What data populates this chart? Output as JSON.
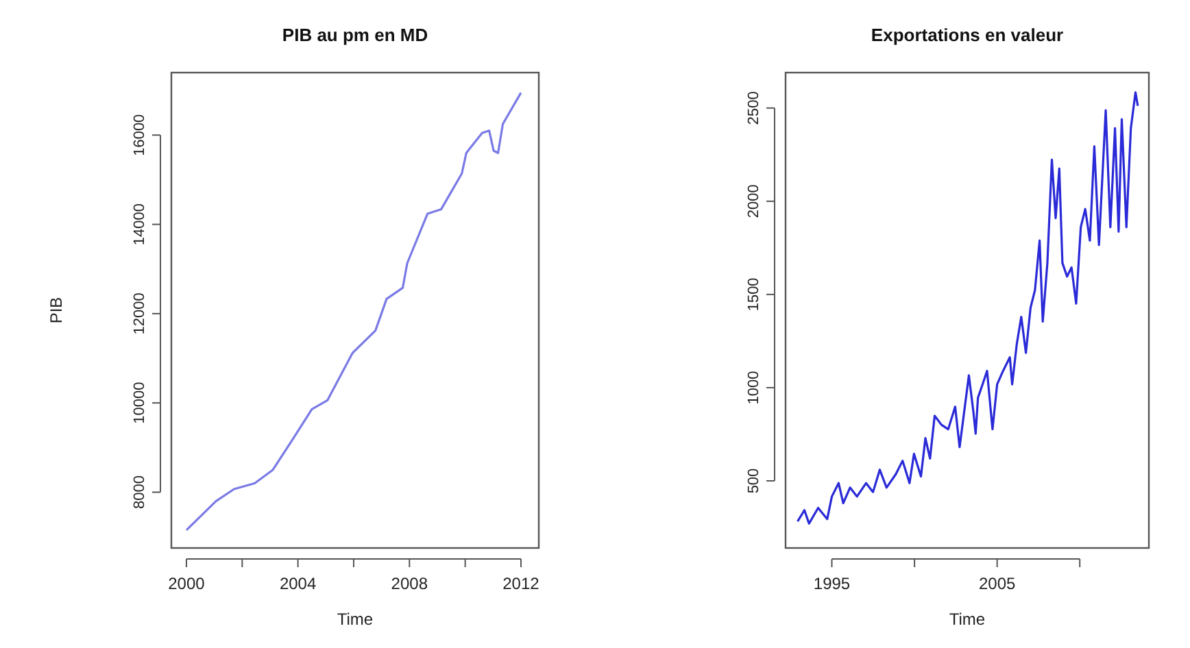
{
  "chart_data": [
    {
      "type": "line",
      "title": "PIB au pm en MD",
      "xlabel": "Time",
      "ylabel": "PIB",
      "xlim": [
        1999.46,
        2012.64
      ],
      "ylim": [
        6750,
        17400
      ],
      "xticks": [
        2000,
        {
          "value": 2002,
          "label": null
        },
        2004,
        {
          "value": 2006,
          "label": null
        },
        2008,
        {
          "value": 2010,
          "label": null
        },
        2012
      ],
      "yticks": [
        8000,
        10000,
        12000,
        14000,
        16000
      ],
      "x": [
        2000,
        2001.06,
        2001.71,
        2002.45,
        2003.1,
        2003.84,
        2004.5,
        2005.06,
        2005.96,
        2006.78,
        2007.18,
        2007.76,
        2007.92,
        2008.65,
        2009.14,
        2009.88,
        2010.04,
        2010.61,
        2010.86,
        2011.02,
        2011.18,
        2011.35,
        2012
      ],
      "series": [
        {
          "color": "#7a7ae6",
          "values": [
            7150,
            7800,
            8070,
            8200,
            8500,
            9210,
            9860,
            10060,
            11120,
            11620,
            12330,
            12580,
            13130,
            14240,
            14340,
            15140,
            15600,
            16050,
            16100,
            15650,
            15600,
            16250,
            16950
          ]
        }
      ]
    },
    {
      "type": "line",
      "title": "Exportations en valeur",
      "xlabel": "Time",
      "xlim": [
        1992.2,
        2014.18
      ],
      "ylim": [
        140,
        2690
      ],
      "xticks": [
        1995,
        {
          "value": 2000,
          "label": null
        },
        2005,
        {
          "value": 2010,
          "label": null
        }
      ],
      "yticks": [
        500,
        1000,
        1500,
        2000,
        2500
      ],
      "x": [
        1992.93,
        1993.34,
        1993.62,
        1994.17,
        1994.72,
        1995,
        1995.41,
        1995.69,
        1996.1,
        1996.52,
        1997.07,
        1997.49,
        1997.9,
        1998.31,
        1998.87,
        1999.28,
        1999.7,
        1999.97,
        2000.39,
        2000.66,
        2000.94,
        2001.22,
        2001.63,
        2002.04,
        2002.46,
        2002.73,
        2003.01,
        2003.29,
        2003.56,
        2003.7,
        2003.84,
        2004.12,
        2004.39,
        2004.72,
        2005,
        2005.36,
        2005.77,
        2005.91,
        2006.19,
        2006.46,
        2006.74,
        2007.02,
        2007.29,
        2007.57,
        2007.76,
        2008.04,
        2008.31,
        2008.54,
        2008.76,
        2008.95,
        2009.23,
        2009.5,
        2009.78,
        2010.06,
        2010.33,
        2010.61,
        2010.88,
        2011.16,
        2011.57,
        2011.85,
        2012.13,
        2012.35,
        2012.54,
        2012.82,
        2013.09,
        2013.37,
        2013.51
      ],
      "series": [
        {
          "color": "#2a2ad8",
          "values": [
            283,
            343,
            271,
            355,
            295,
            416,
            488,
            380,
            464,
            416,
            488,
            440,
            560,
            464,
            536,
            608,
            488,
            645,
            524,
            729,
            620,
            849,
            801,
            777,
            898,
            681,
            873,
            1066,
            873,
            753,
            946,
            1018,
            1090,
            777,
            1018,
            1090,
            1163,
            1018,
            1235,
            1380,
            1187,
            1428,
            1524,
            1789,
            1355,
            1669,
            2223,
            1910,
            2175,
            1669,
            1596,
            1645,
            1451,
            1861,
            1958,
            1789,
            2295,
            1765,
            2488,
            1861,
            2392,
            1837,
            2440,
            1861,
            2392,
            2584,
            2512
          ]
        }
      ]
    }
  ]
}
